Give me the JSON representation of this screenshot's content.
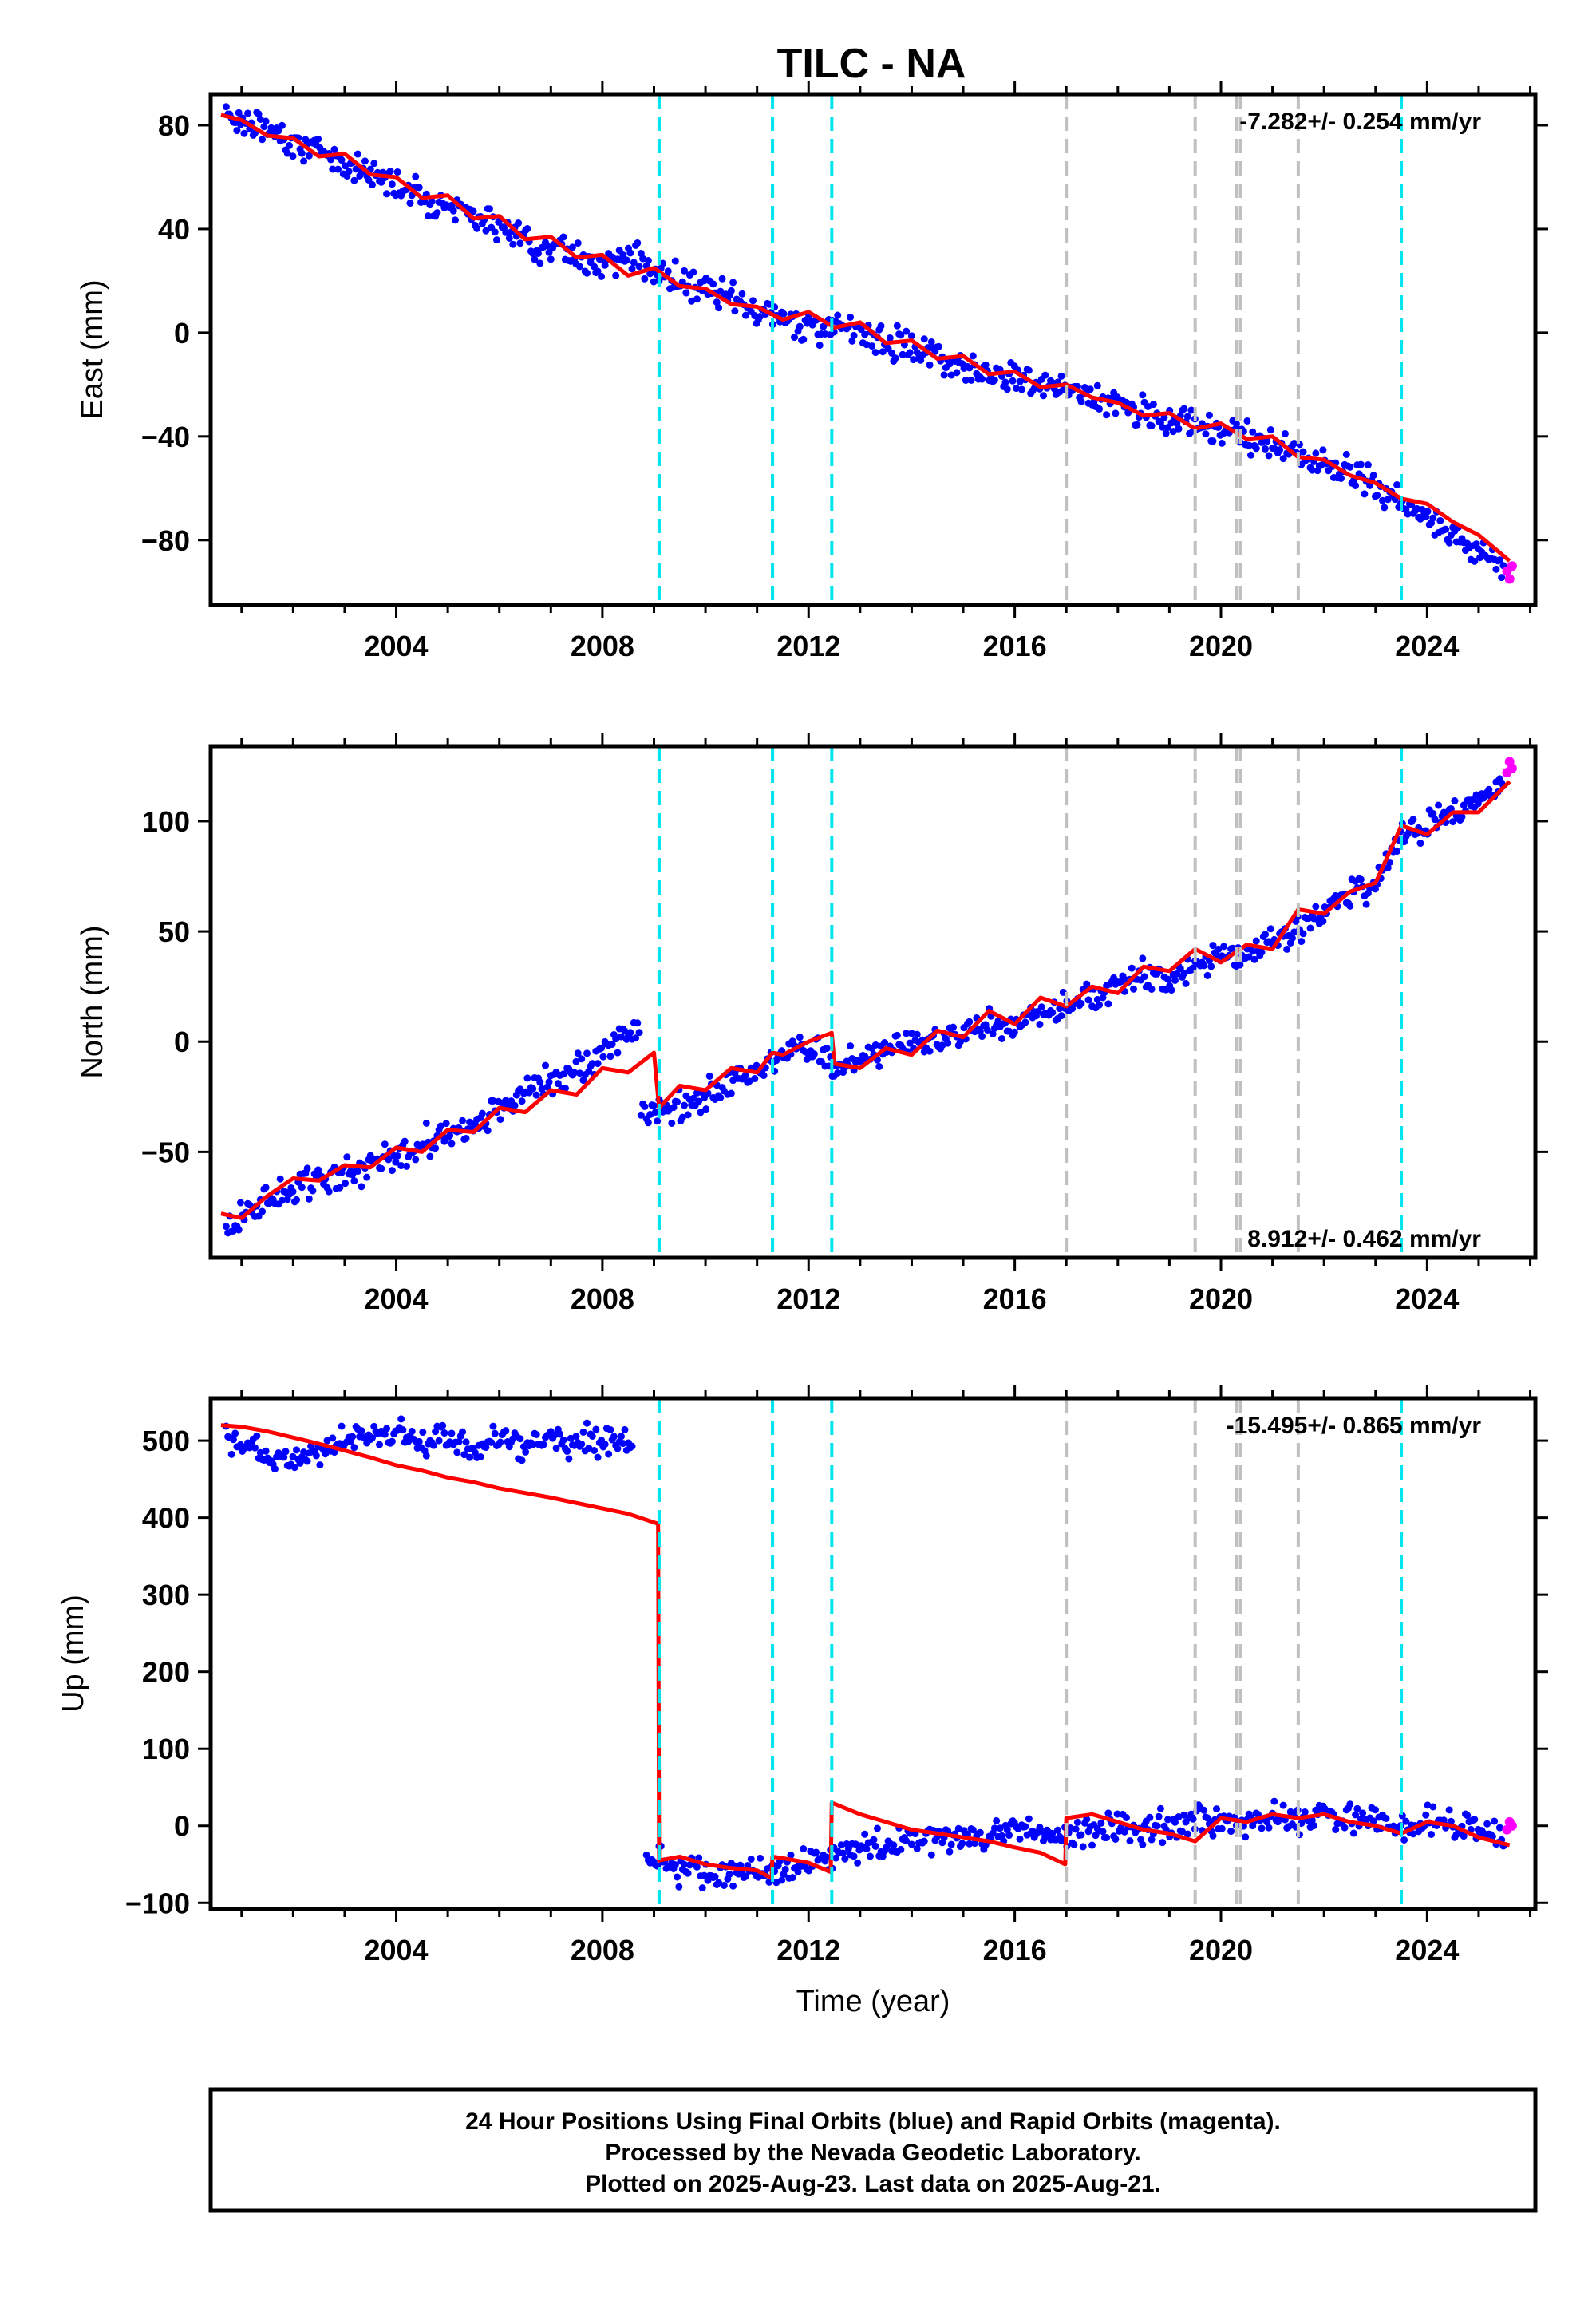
{
  "title": "TILC - NA",
  "caption": {
    "lines": [
      "24 Hour Positions Using Final Orbits (blue) and Rapid Orbits (magenta).",
      "Processed by the Nevada Geodetic Laboratory.",
      "Plotted on 2025-Aug-23. Last data on 2025-Aug-21."
    ]
  },
  "colors": {
    "final_orbits": "#0000ff",
    "rapid_orbits": "#ff00ff",
    "model": "#ff0000",
    "antenna_change_lines": "#00e5ee",
    "earthquake_lines": "#c0c0c0"
  },
  "chart_data": [
    {
      "type": "scatter",
      "ylabel": "East (mm)",
      "xlabel": "",
      "xlim": [
        2000.4,
        2026.1
      ],
      "ylim": [
        -105,
        92
      ],
      "xticks": [
        2004,
        2008,
        2012,
        2016,
        2020,
        2024
      ],
      "yticks": [
        -80,
        -40,
        0,
        40,
        80
      ],
      "rate_text": "-7.282+/- 0.254 mm/yr",
      "rate_position": "top-right",
      "grid": false,
      "cyan_dashed_lines": [
        2009.1,
        2011.3,
        2012.45,
        2023.5
      ],
      "gray_dashed_lines": [
        2017.0,
        2019.5,
        2020.3,
        2020.38,
        2021.5
      ],
      "series": [
        {
          "role": "final",
          "x": [
            2000.7,
            2001.0,
            2001.5,
            2002.0,
            2002.5,
            2003.0,
            2003.5,
            2004.0,
            2004.5,
            2005.0,
            2005.5,
            2006.0,
            2006.5,
            2007.0,
            2007.5,
            2008.0,
            2008.5,
            2009.0,
            2009.5,
            2010.0,
            2010.5,
            2011.0,
            2011.5,
            2012.0,
            2012.5,
            2013.0,
            2013.5,
            2014.0,
            2014.5,
            2015.0,
            2015.5,
            2016.0,
            2016.5,
            2017.0,
            2017.5,
            2018.0,
            2018.5,
            2019.0,
            2019.5,
            2020.0,
            2020.5,
            2021.0,
            2021.5,
            2022.0,
            2022.5,
            2023.0,
            2023.5,
            2024.0,
            2024.5,
            2025.0,
            2025.5
          ],
          "values": [
            85,
            82,
            78,
            74,
            70,
            65,
            62,
            58,
            52,
            50,
            45,
            40,
            36,
            33,
            30,
            26,
            30,
            24,
            20,
            16,
            12,
            8,
            6,
            3,
            2,
            0,
            -3,
            -6,
            -9,
            -12,
            -15,
            -17,
            -20,
            -22,
            -25,
            -28,
            -31,
            -34,
            -35,
            -37,
            -40,
            -43,
            -47,
            -51,
            -55,
            -60,
            -66,
            -72,
            -78,
            -84,
            -92
          ]
        },
        {
          "role": "rapid",
          "x": [
            2025.55,
            2025.6,
            2025.65
          ],
          "values": [
            -92,
            -95,
            -90
          ]
        }
      ],
      "model": {
        "x": [
          2000.6,
          2001.0,
          2001.5,
          2002.0,
          2002.5,
          2003.0,
          2003.5,
          2004.0,
          2004.5,
          2005.0,
          2005.5,
          2006.0,
          2006.5,
          2007.0,
          2007.5,
          2008.0,
          2008.5,
          2009.0,
          2009.5,
          2010.0,
          2010.5,
          2011.0,
          2011.5,
          2012.0,
          2012.5,
          2013.0,
          2013.5,
          2014.0,
          2014.5,
          2015.0,
          2015.5,
          2016.0,
          2016.5,
          2017.0,
          2017.5,
          2018.0,
          2018.5,
          2019.0,
          2019.5,
          2020.0,
          2020.5,
          2021.0,
          2021.5,
          2022.0,
          2022.5,
          2023.0,
          2023.5,
          2024.0,
          2024.5,
          2025.0,
          2025.6
        ],
        "values": [
          84,
          82,
          76,
          75,
          68,
          69,
          61,
          60,
          52,
          53,
          44,
          45,
          36,
          37,
          29,
          30,
          22,
          25,
          18,
          17,
          11,
          10,
          5,
          8,
          2,
          4,
          -4,
          -3,
          -10,
          -9,
          -16,
          -15,
          -21,
          -20,
          -25,
          -27,
          -32,
          -31,
          -37,
          -35,
          -41,
          -40,
          -48,
          -49,
          -55,
          -58,
          -64,
          -66,
          -73,
          -78,
          -88
        ]
      }
    },
    {
      "type": "scatter",
      "ylabel": "North (mm)",
      "xlabel": "",
      "xlim": [
        2000.4,
        2026.1
      ],
      "ylim": [
        -98,
        134
      ],
      "xticks": [
        2004,
        2008,
        2012,
        2016,
        2020,
        2024
      ],
      "yticks": [
        -50,
        0,
        50,
        100
      ],
      "rate_text": "8.912+/- 0.462 mm/yr",
      "rate_position": "bottom-right",
      "grid": false,
      "cyan_dashed_lines": [
        2009.1,
        2011.3,
        2012.45,
        2023.5
      ],
      "gray_dashed_lines": [
        2017.0,
        2019.5,
        2020.3,
        2020.38,
        2021.5
      ],
      "series": [
        {
          "role": "final",
          "x": [
            2000.7,
            2001.0,
            2001.5,
            2002.0,
            2002.5,
            2003.0,
            2003.5,
            2004.0,
            2004.5,
            2005.0,
            2005.5,
            2006.0,
            2006.5,
            2007.0,
            2007.5,
            2008.0,
            2008.5,
            2009.0,
            2009.5,
            2010.0,
            2010.5,
            2011.0,
            2011.5,
            2012.0,
            2012.5,
            2013.0,
            2013.5,
            2014.0,
            2014.5,
            2015.0,
            2015.5,
            2016.0,
            2016.5,
            2017.0,
            2017.5,
            2018.0,
            2018.5,
            2019.0,
            2019.5,
            2020.0,
            2020.5,
            2021.0,
            2021.5,
            2022.0,
            2022.5,
            2023.0,
            2023.5,
            2024.0,
            2024.5,
            2025.0,
            2025.5
          ],
          "values": [
            -85,
            -78,
            -72,
            -66,
            -62,
            -60,
            -55,
            -52,
            -46,
            -42,
            -38,
            -30,
            -25,
            -18,
            -12,
            -6,
            5,
            -32,
            -30,
            -25,
            -18,
            -12,
            -5,
            -2,
            -10,
            -8,
            -4,
            -2,
            0,
            4,
            8,
            6,
            12,
            15,
            20,
            25,
            30,
            28,
            35,
            38,
            42,
            45,
            52,
            58,
            68,
            72,
            95,
            98,
            105,
            108,
            118
          ]
        },
        {
          "role": "rapid",
          "x": [
            2025.55,
            2025.6,
            2025.65
          ],
          "values": [
            122,
            127,
            124
          ]
        }
      ],
      "model": {
        "x": [
          2000.6,
          2001.0,
          2001.5,
          2002.0,
          2002.5,
          2003.0,
          2003.5,
          2004.0,
          2004.5,
          2005.0,
          2005.5,
          2006.0,
          2006.5,
          2007.0,
          2007.5,
          2008.0,
          2008.5,
          2009.0,
          2009.1,
          2009.5,
          2010.0,
          2010.5,
          2011.0,
          2011.3,
          2011.5,
          2012.0,
          2012.45,
          2012.5,
          2013.0,
          2013.5,
          2014.0,
          2014.5,
          2015.0,
          2015.5,
          2016.0,
          2016.5,
          2017.0,
          2017.5,
          2018.0,
          2018.5,
          2019.0,
          2019.5,
          2020.0,
          2020.5,
          2021.0,
          2021.5,
          2022.0,
          2022.5,
          2023.0,
          2023.5,
          2024.0,
          2024.5,
          2025.0,
          2025.6
        ],
        "values": [
          -78,
          -80,
          -70,
          -62,
          -63,
          -56,
          -57,
          -48,
          -50,
          -40,
          -41,
          -30,
          -32,
          -22,
          -24,
          -12,
          -14,
          -5,
          -30,
          -20,
          -22,
          -12,
          -14,
          -5,
          -6,
          0,
          4,
          -10,
          -12,
          -3,
          -6,
          5,
          2,
          14,
          8,
          20,
          16,
          25,
          22,
          34,
          32,
          42,
          36,
          44,
          42,
          60,
          58,
          68,
          72,
          98,
          94,
          104,
          104,
          118
        ]
      }
    },
    {
      "type": "scatter",
      "ylabel": "Up (mm)",
      "xlabel": "Time (year)",
      "xlim": [
        2000.4,
        2026.1
      ],
      "ylim": [
        -108,
        555
      ],
      "xticks": [
        2004,
        2008,
        2012,
        2016,
        2020,
        2024
      ],
      "yticks": [
        -100,
        0,
        100,
        200,
        300,
        400,
        500
      ],
      "rate_text": "-15.495+/- 0.865 mm/yr",
      "rate_position": "top-right",
      "grid": false,
      "cyan_dashed_lines": [
        2009.1,
        2011.3,
        2012.45,
        2023.5
      ],
      "gray_dashed_lines": [
        2017.0,
        2019.5,
        2020.3,
        2020.38,
        2021.5
      ],
      "series": [
        {
          "role": "final",
          "x": [
            2000.7,
            2001.0,
            2001.5,
            2002.0,
            2002.5,
            2003.0,
            2003.5,
            2004.0,
            2004.5,
            2005.0,
            2005.5,
            2006.0,
            2006.5,
            2007.0,
            2007.5,
            2008.0,
            2008.5,
            2008.9,
            2009.3,
            2009.5,
            2010.0,
            2010.5,
            2011.0,
            2011.5,
            2012.0,
            2012.5,
            2013.0,
            2013.5,
            2014.0,
            2014.5,
            2015.0,
            2015.5,
            2016.0,
            2016.5,
            2017.0,
            2017.5,
            2018.0,
            2018.5,
            2019.0,
            2019.5,
            2020.0,
            2020.5,
            2021.0,
            2021.5,
            2022.0,
            2022.5,
            2023.0,
            2023.5,
            2024.0,
            2024.5,
            2025.0,
            2025.5
          ],
          "values": [
            500,
            495,
            480,
            470,
            485,
            500,
            505,
            510,
            495,
            500,
            490,
            505,
            485,
            500,
            495,
            505,
            500,
            -45,
            -50,
            -55,
            -60,
            -65,
            -55,
            -60,
            -50,
            -40,
            -30,
            -25,
            -20,
            -15,
            -15,
            -10,
            -5,
            -10,
            -15,
            -5,
            0,
            -5,
            0,
            5,
            10,
            5,
            10,
            5,
            15,
            10,
            5,
            0,
            5,
            0,
            -5,
            -15
          ]
        },
        {
          "role": "rapid",
          "x": [
            2025.55,
            2025.6,
            2025.65
          ],
          "values": [
            -5,
            5,
            0
          ]
        }
      ],
      "model": {
        "x": [
          2000.6,
          2001.0,
          2001.5,
          2002.0,
          2002.5,
          2003.0,
          2003.5,
          2004.0,
          2004.5,
          2005.0,
          2005.5,
          2006.0,
          2006.5,
          2007.0,
          2007.5,
          2008.0,
          2008.5,
          2009.08,
          2009.1,
          2009.5,
          2010.0,
          2010.5,
          2011.0,
          2011.28,
          2011.3,
          2011.5,
          2012.0,
          2012.43,
          2012.45,
          2013.0,
          2013.5,
          2014.0,
          2014.5,
          2015.0,
          2015.5,
          2016.0,
          2016.5,
          2016.98,
          2017.0,
          2017.5,
          2018.0,
          2018.5,
          2019.0,
          2019.5,
          2020.0,
          2020.5,
          2021.0,
          2021.5,
          2022.0,
          2022.5,
          2023.0,
          2023.5,
          2024.0,
          2024.5,
          2025.0,
          2025.6
        ],
        "values": [
          520,
          518,
          512,
          504,
          496,
          487,
          478,
          468,
          461,
          452,
          446,
          438,
          432,
          426,
          419,
          412,
          405,
          392,
          -45,
          -40,
          -50,
          -55,
          -58,
          -68,
          -40,
          -42,
          -48,
          -60,
          30,
          15,
          5,
          -5,
          -10,
          -15,
          -20,
          -28,
          -35,
          -50,
          10,
          15,
          5,
          -5,
          -10,
          -20,
          10,
          5,
          15,
          10,
          15,
          5,
          0,
          -10,
          5,
          0,
          -15,
          -25
        ]
      }
    }
  ]
}
